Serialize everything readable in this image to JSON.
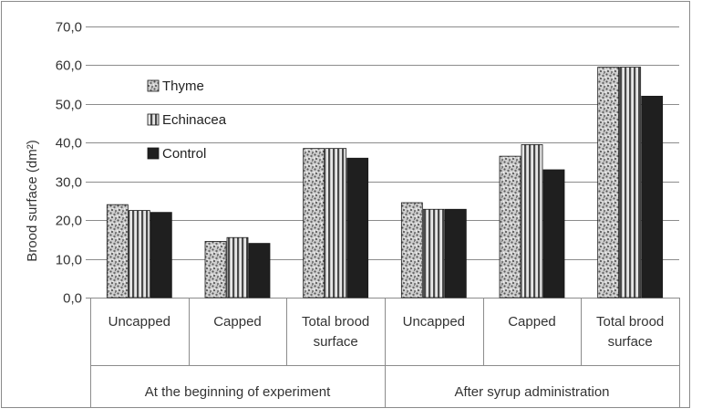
{
  "chart_data": {
    "type": "bar",
    "ylabel": "Brood surface (dm²)",
    "ylim": [
      0,
      70
    ],
    "yticks": [
      "0,0",
      "10,0",
      "20,0",
      "30,0",
      "40,0",
      "50,0",
      "60,0",
      "70,0"
    ],
    "grid": true,
    "legend_position": "top-left inside",
    "categories": [
      {
        "lines": [
          "Uncapped"
        ]
      },
      {
        "lines": [
          "Capped"
        ]
      },
      {
        "lines": [
          "Total brood",
          "surface"
        ]
      },
      {
        "lines": [
          "Uncapped"
        ]
      },
      {
        "lines": [
          "Capped"
        ]
      },
      {
        "lines": [
          "Total brood",
          "surface"
        ]
      }
    ],
    "groups": [
      {
        "label": "At the beginning of experiment",
        "span": [
          0,
          2
        ]
      },
      {
        "label": "After syrup administration",
        "span": [
          3,
          5
        ]
      }
    ],
    "series": [
      {
        "name": "Thyme",
        "pattern": "speckled",
        "values": [
          24.0,
          14.5,
          38.5,
          24.5,
          36.5,
          59.5
        ]
      },
      {
        "name": "Echinacea",
        "pattern": "striped",
        "values": [
          22.5,
          15.5,
          38.5,
          22.8,
          39.5,
          59.5
        ]
      },
      {
        "name": "Control",
        "pattern": "solid",
        "values": [
          22.0,
          14.0,
          36.0,
          22.8,
          33.0,
          52.0
        ]
      }
    ],
    "colors": {
      "control": "#1f1f1f",
      "stripe_dark": "#4a4a4a",
      "stripe_light": "#e6e6e6",
      "speckle_base": "#cfcfcf"
    }
  }
}
